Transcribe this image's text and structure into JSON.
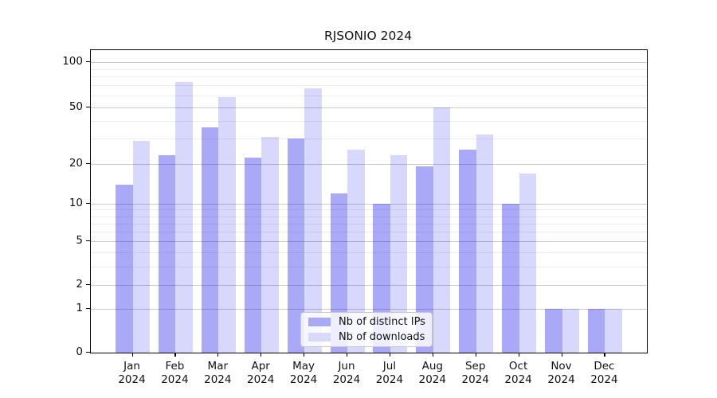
{
  "title": "RJSONIO 2024",
  "legend": {
    "items": [
      {
        "label": "Nb of distinct IPs",
        "color": "#a9a9f8",
        "fill": "rgba(10,10,235,0.35)"
      },
      {
        "label": "Nb of downloads",
        "color": "#d9d9fb",
        "fill": "rgba(10,10,235,0.16)"
      }
    ]
  },
  "chart_data": {
    "type": "bar",
    "title": "RJSONIO 2024",
    "months": [
      "Jan",
      "Feb",
      "Mar",
      "Apr",
      "May",
      "Jun",
      "Jul",
      "Aug",
      "Sep",
      "Oct",
      "Nov",
      "Dec"
    ],
    "year": "2024",
    "categories": [
      "Jan 2024",
      "Feb 2024",
      "Mar 2024",
      "Apr 2024",
      "May 2024",
      "Jun 2024",
      "Jul 2024",
      "Aug 2024",
      "Sep 2024",
      "Oct 2024",
      "Nov 2024",
      "Dec 2024"
    ],
    "series": [
      {
        "name": "Nb of distinct IPs",
        "values": [
          14,
          23,
          36,
          22,
          30,
          12,
          10,
          19,
          25,
          10,
          1,
          1
        ]
      },
      {
        "name": "Nb of downloads",
        "values": [
          29,
          74,
          58,
          31,
          67,
          25,
          23,
          50,
          32,
          17,
          1,
          1
        ]
      }
    ],
    "xlabel": "",
    "ylabel": "",
    "y_scale": "log1p (0,1,2,5,10,20,50,100 ticks)",
    "y_ticks": [
      0,
      1,
      2,
      5,
      10,
      20,
      50,
      100
    ],
    "y_minor_ticks": [
      3,
      4,
      6,
      7,
      8,
      9,
      30,
      40,
      60,
      70,
      80,
      90
    ],
    "ylim": [
      0,
      120
    ],
    "grid": "on",
    "legend_position": "bottom-center"
  }
}
